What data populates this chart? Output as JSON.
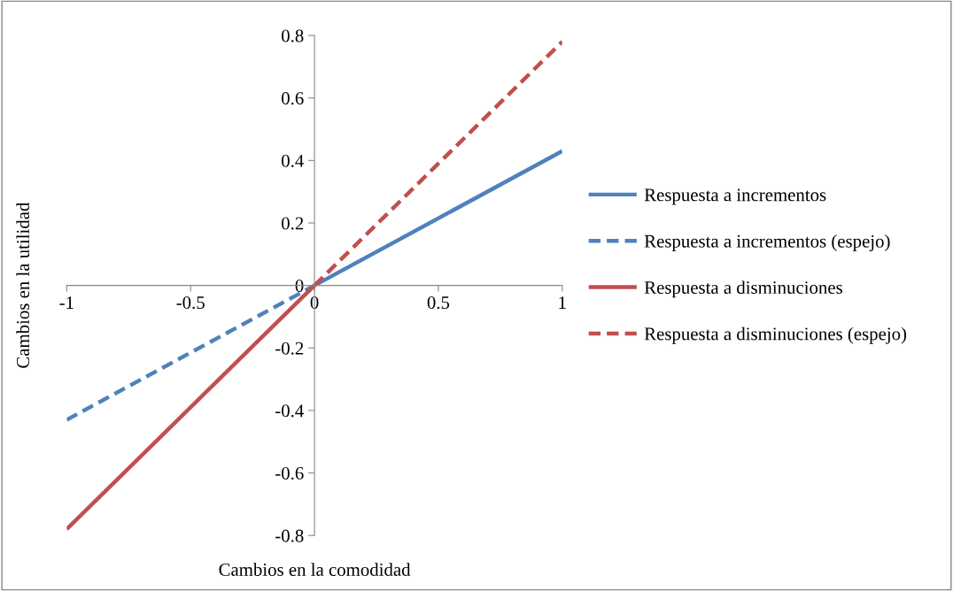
{
  "chart_data": {
    "type": "line",
    "xlabel": "Cambios en la comodidad",
    "ylabel": "Cambios en la utilidad",
    "xlim": [
      -1,
      1
    ],
    "ylim": [
      -0.8,
      0.8
    ],
    "xticks": [
      -1,
      -0.5,
      0,
      0.5,
      1
    ],
    "yticks": [
      -0.8,
      -0.6,
      -0.4,
      -0.2,
      0,
      0.2,
      0.4,
      0.6,
      0.8
    ],
    "grid": false,
    "legend": "right",
    "marker": "none",
    "series": [
      {
        "name": "Respuesta a incrementos",
        "color": "#4f81bd",
        "line_style": "solid",
        "x": [
          0,
          1
        ],
        "values": [
          0,
          0.43
        ]
      },
      {
        "name": "Respuesta a incrementos (espejo)",
        "color": "#4f81bd",
        "line_style": "dashed",
        "x": [
          -1,
          0
        ],
        "values": [
          -0.43,
          0
        ]
      },
      {
        "name": "Respuesta a disminuciones",
        "color": "#c0504d",
        "line_style": "solid",
        "x": [
          -1,
          0
        ],
        "values": [
          -0.78,
          0
        ]
      },
      {
        "name": "Respuesta a disminuciones (espejo)",
        "color": "#c0504d",
        "line_style": "dashed",
        "x": [
          0,
          1
        ],
        "values": [
          0,
          0.78
        ]
      }
    ]
  }
}
